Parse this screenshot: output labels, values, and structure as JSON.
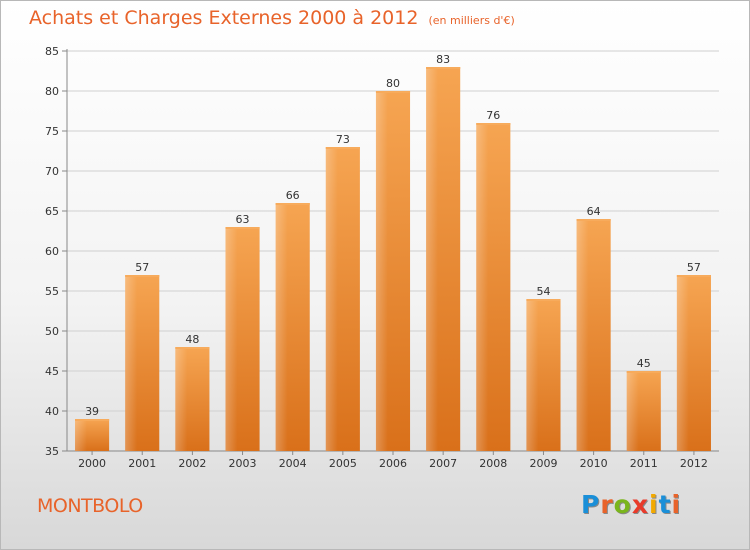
{
  "header": {
    "title": "Achats et Charges Externes 2000 à 2012",
    "unit": "(en milliers d'€)"
  },
  "footer": {
    "commune": "MONTBOLO",
    "logo_letters": [
      "P",
      "r",
      "o",
      "x",
      "i",
      "t",
      "i"
    ],
    "logo_colors": [
      "#1a8fd8",
      "#e8632a",
      "#7ab51d",
      "#e83a2a",
      "#f2a900",
      "#1a8fd8",
      "#e8632a"
    ]
  },
  "chart_data": {
    "type": "bar",
    "title": "Achats et Charges Externes 2000 à 2012",
    "categories": [
      "2000",
      "2001",
      "2002",
      "2003",
      "2004",
      "2005",
      "2006",
      "2007",
      "2008",
      "2009",
      "2010",
      "2011",
      "2012"
    ],
    "values": [
      39,
      57,
      48,
      63,
      66,
      73,
      80,
      83,
      76,
      54,
      64,
      45,
      57
    ],
    "ylim": [
      35,
      85
    ],
    "yticks": [
      35,
      40,
      45,
      50,
      55,
      60,
      65,
      70,
      75,
      80,
      85
    ],
    "grid": true,
    "bar_color": "#f08a2a",
    "bar_top_color": "#f7ab5c"
  }
}
